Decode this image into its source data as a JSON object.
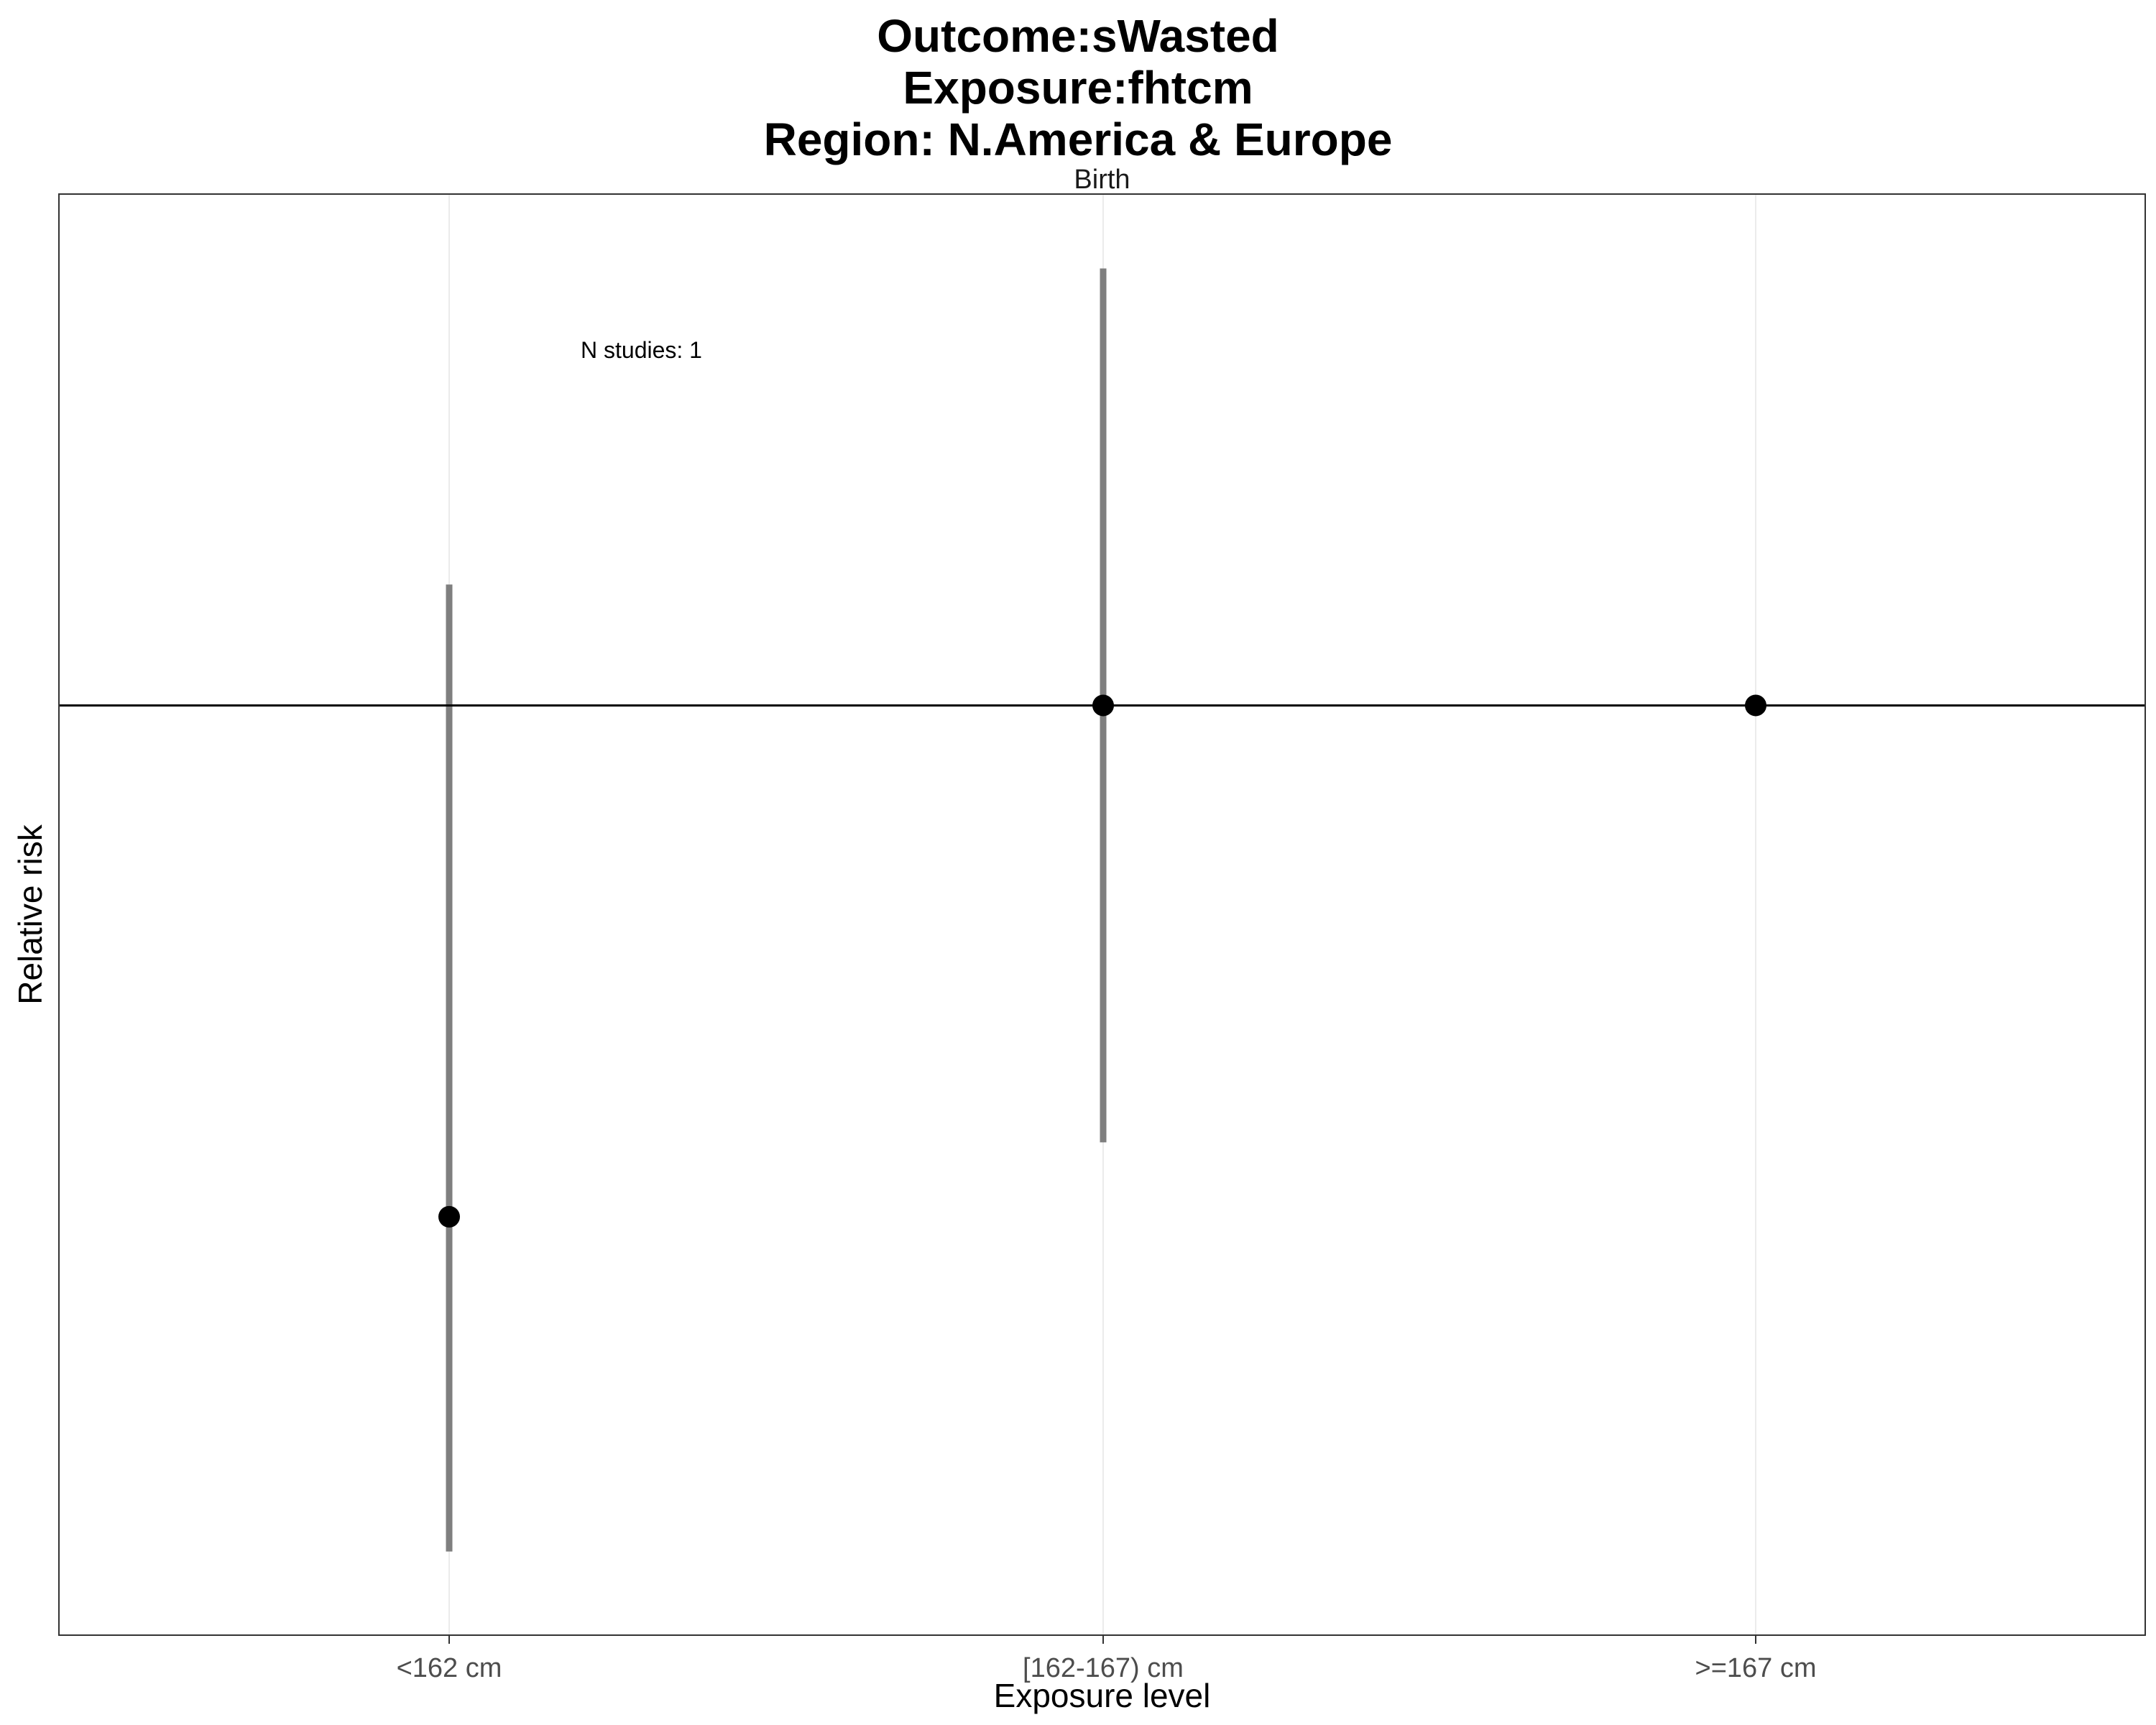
{
  "chart_data": {
    "type": "scatter",
    "title_lines": [
      "Outcome:sWasted",
      "Exposure:fhtcm",
      "Region: N.America & Europe"
    ],
    "facet_label": "Birth",
    "xlabel": "Exposure level",
    "ylabel": "Relative risk",
    "categories": [
      "<162 cm",
      "[162-167) cm",
      ">=167 cm"
    ],
    "points": [
      {
        "category": "<162 cm",
        "estimate": 0.45,
        "ci_lower": 0.09,
        "ci_upper": 1.13
      },
      {
        "category": "[162-167) cm",
        "estimate": 1.0,
        "ci_lower": 0.53,
        "ci_upper": 1.47
      },
      {
        "category": ">=167 cm",
        "estimate": 1.0,
        "ci_lower": null,
        "ci_upper": null
      }
    ],
    "reference_line": 1,
    "ylim": [
      0.0,
      1.55
    ],
    "y_ticks_shown": false,
    "grid": "vertical-major",
    "annotation": "N studies: 1",
    "colors": {
      "point": "#000000",
      "errorbar": "#7f7f7f",
      "gridline": "#ebebeb",
      "refline": "#000000",
      "panel_border": "#333333"
    }
  }
}
